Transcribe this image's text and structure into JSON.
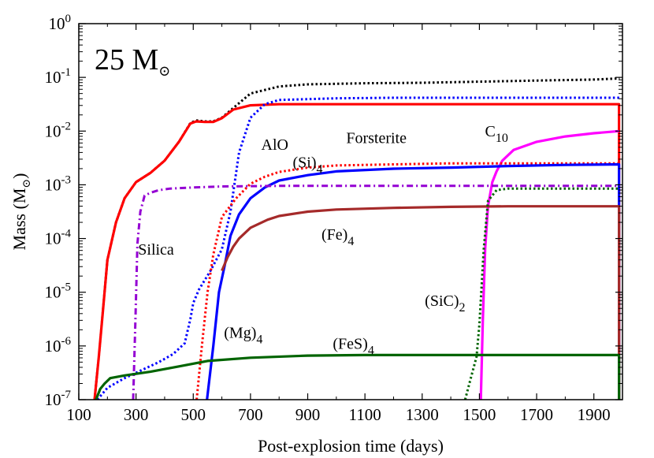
{
  "chart_data": {
    "type": "line",
    "panel_label": "25 M",
    "panel_label_symbol": "⊙",
    "xlabel": "Post-explosion time (days)",
    "ylabel": "Mass (M",
    "ylabel_symbol": "⊙",
    "ylabel_close": ")",
    "xlim": [
      100,
      2000
    ],
    "ylim_log10": [
      -7,
      0
    ],
    "yscale": "log",
    "x_ticks": [
      100,
      300,
      500,
      700,
      900,
      1100,
      1300,
      1500,
      1700,
      1900
    ],
    "x_tick_labels": [
      "100",
      "300",
      "500",
      "700",
      "900",
      "1100",
      "1300",
      "1500",
      "1700",
      "1900"
    ],
    "y_ticks": [
      {
        "base": "10",
        "exp": "0",
        "log": 0
      },
      {
        "base": "10",
        "exp": "-1",
        "log": -1
      },
      {
        "base": "10",
        "exp": "-2",
        "log": -2
      },
      {
        "base": "10",
        "exp": "-3",
        "log": -3
      },
      {
        "base": "10",
        "exp": "-4",
        "log": -4
      },
      {
        "base": "10",
        "exp": "-5",
        "log": -5
      },
      {
        "base": "10",
        "exp": "-6",
        "log": -6
      },
      {
        "base": "10",
        "exp": "-7",
        "log": -7
      }
    ],
    "annotations": [
      {
        "key": "forsterite",
        "text": "Forsterite",
        "sub": "",
        "x": 1140,
        "y": -2.22
      },
      {
        "key": "c10",
        "text": "C",
        "sub": "10",
        "x": 1560,
        "y": -2.1
      },
      {
        "key": "alo",
        "text": "AlO",
        "sub": "",
        "x": 785,
        "y": -2.35
      },
      {
        "key": "si4",
        "text": "(Si)",
        "sub": "4",
        "x": 900,
        "y": -2.68
      },
      {
        "key": "silica",
        "text": "Silica",
        "sub": "",
        "x": 370,
        "y": -4.3
      },
      {
        "key": "fe4",
        "text": "(Fe)",
        "sub": "4",
        "x": 1005,
        "y": -4.02
      },
      {
        "key": "sic2",
        "text": "(SiC)",
        "sub": "2",
        "x": 1380,
        "y": -5.25
      },
      {
        "key": "mg4",
        "text": "(Mg)",
        "sub": "4",
        "x": 675,
        "y": -5.85
      },
      {
        "key": "fes4",
        "text": "(FeS)",
        "sub": "4",
        "x": 1060,
        "y": -6.05
      }
    ],
    "series": [
      {
        "key": "total_dust",
        "color": "#000000",
        "style": "dotted",
        "x": [
          155,
          170,
          185,
          200,
          230,
          260,
          300,
          350,
          400,
          450,
          490,
          510,
          540,
          570,
          600,
          640,
          700,
          800,
          900,
          1100,
          1300,
          1500,
          1700,
          1900,
          1990
        ],
        "y_log10": [
          -7,
          -6.2,
          -5.3,
          -4.4,
          -3.7,
          -3.25,
          -2.95,
          -2.78,
          -2.55,
          -2.2,
          -1.85,
          -1.8,
          -1.82,
          -1.82,
          -1.75,
          -1.57,
          -1.3,
          -1.17,
          -1.13,
          -1.11,
          -1.1,
          -1.08,
          -1.06,
          -1.04,
          -1.02
        ]
      },
      {
        "key": "forsterite",
        "color": "#ff0000",
        "style": "solid",
        "x": [
          155,
          170,
          185,
          200,
          230,
          260,
          300,
          350,
          400,
          450,
          490,
          510,
          540,
          570,
          600,
          640,
          700,
          800,
          1000,
          1200,
          1400,
          1600,
          1800,
          1988,
          1988
        ],
        "y_log10": [
          -7,
          -6.2,
          -5.3,
          -4.4,
          -3.7,
          -3.25,
          -2.95,
          -2.78,
          -2.55,
          -2.2,
          -1.86,
          -1.82,
          -1.83,
          -1.83,
          -1.76,
          -1.6,
          -1.52,
          -1.5,
          -1.5,
          -1.5,
          -1.5,
          -1.5,
          -1.5,
          -1.5,
          -7
        ]
      },
      {
        "key": "alo",
        "color": "#0000ff",
        "style": "dotted",
        "x": [
          165,
          200,
          260,
          320,
          380,
          430,
          470,
          490,
          500,
          520,
          560,
          600,
          630,
          660,
          700,
          750,
          800,
          1000,
          1200,
          1500,
          1800,
          1990
        ],
        "y_log10": [
          -7,
          -6.78,
          -6.6,
          -6.45,
          -6.3,
          -6.15,
          -5.95,
          -5.5,
          -5.2,
          -4.95,
          -4.6,
          -4.2,
          -3.5,
          -2.4,
          -1.75,
          -1.5,
          -1.42,
          -1.39,
          -1.38,
          -1.38,
          -1.38,
          -1.38
        ]
      },
      {
        "key": "c10",
        "color": "#ff00ff",
        "style": "solid",
        "x": [
          1505,
          1512,
          1520,
          1530,
          1545,
          1560,
          1580,
          1620,
          1700,
          1800,
          1900,
          1988
        ],
        "y_log10": [
          -7,
          -5.5,
          -4.2,
          -3.4,
          -2.95,
          -2.75,
          -2.55,
          -2.35,
          -2.2,
          -2.1,
          -2.04,
          -2.0
        ]
      },
      {
        "key": "si4",
        "color": "#ff0000",
        "style": "dotted",
        "x": [
          512,
          530,
          550,
          570,
          600,
          650,
          700,
          750,
          800,
          900,
          1000,
          1200,
          1400,
          1600,
          1800,
          1990
        ],
        "y_log10": [
          -7,
          -6,
          -5,
          -4.3,
          -3.6,
          -3.25,
          -2.98,
          -2.85,
          -2.76,
          -2.68,
          -2.64,
          -2.62,
          -2.6,
          -2.6,
          -2.6,
          -2.6
        ]
      },
      {
        "key": "mg4",
        "color": "#0000ff",
        "style": "solid",
        "x": [
          548,
          570,
          590,
          610,
          630,
          660,
          700,
          750,
          800,
          900,
          1000,
          1200,
          1400,
          1600,
          1800,
          1988,
          1988
        ],
        "y_log10": [
          -7,
          -6,
          -5,
          -4.5,
          -3.95,
          -3.55,
          -3.25,
          -3.05,
          -2.92,
          -2.82,
          -2.75,
          -2.7,
          -2.68,
          -2.65,
          -2.63,
          -2.62,
          -7
        ]
      },
      {
        "key": "silica",
        "color": "#9400d3",
        "style": "dashdot",
        "x": [
          290,
          298,
          305,
          315,
          330,
          350,
          380,
          420,
          500,
          600,
          800,
          1000,
          1200,
          1400,
          1600,
          1800,
          1990
        ],
        "y_log10": [
          -7,
          -5.5,
          -4.1,
          -3.5,
          -3.2,
          -3.15,
          -3.1,
          -3.07,
          -3.05,
          -3.03,
          -3.02,
          -3.02,
          -3.02,
          -3.02,
          -3.02,
          -3.02,
          -3.02
        ]
      },
      {
        "key": "fe4",
        "color": "#a52a2a",
        "style": "solid",
        "x": [
          600,
          620,
          640,
          660,
          700,
          760,
          800,
          900,
          1000,
          1200,
          1400,
          1600,
          1800,
          1988,
          1988
        ],
        "y_log10": [
          -4.6,
          -4.35,
          -4.15,
          -4.0,
          -3.8,
          -3.65,
          -3.58,
          -3.5,
          -3.46,
          -3.43,
          -3.41,
          -3.4,
          -3.4,
          -3.4,
          -7
        ]
      },
      {
        "key": "sic2",
        "color": "#006400",
        "style": "dotted",
        "x": [
          1450,
          1470,
          1490,
          1500,
          1515,
          1530,
          1560,
          1600,
          1700,
          1800,
          1990
        ],
        "y_log10": [
          -7,
          -6.6,
          -6.2,
          -5.6,
          -4.2,
          -3.3,
          -3.1,
          -3.07,
          -3.07,
          -3.07,
          -3.07
        ]
      },
      {
        "key": "fes4",
        "color": "#006400",
        "style": "solid",
        "x": [
          160,
          175,
          190,
          210,
          260,
          350,
          450,
          550,
          700,
          900,
          1100,
          1300,
          1500,
          1700,
          1900,
          1988,
          1988
        ],
        "y_log10": [
          -7,
          -6.8,
          -6.7,
          -6.6,
          -6.55,
          -6.48,
          -6.38,
          -6.28,
          -6.22,
          -6.18,
          -6.17,
          -6.17,
          -6.17,
          -6.17,
          -6.17,
          -6.17,
          -7
        ]
      }
    ]
  }
}
